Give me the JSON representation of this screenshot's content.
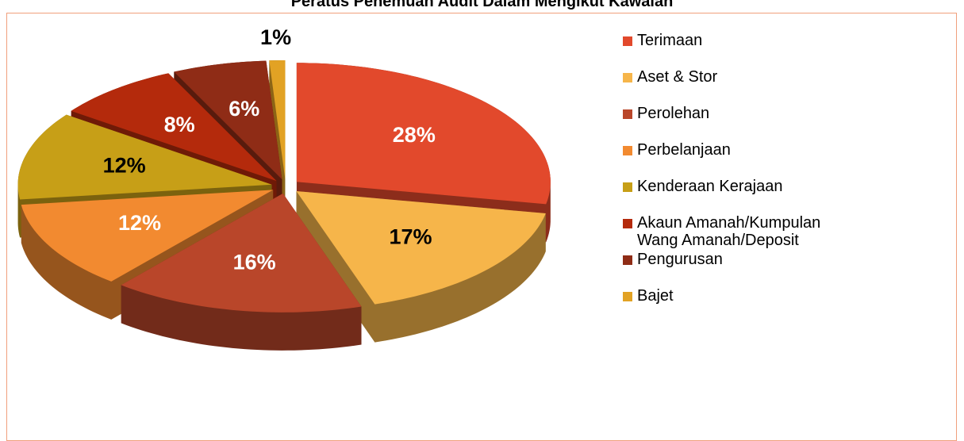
{
  "chart_data": {
    "type": "pie3d",
    "title": "Peratus Penemuan Audit Dalam Mengikut Kawalan",
    "categories": [
      "Terimaan",
      "Aset & Stor",
      "Perolehan",
      "Perbelanjaan",
      "Kenderaan Kerajaan",
      "Akaun Amanah/Kumpulan Wang Amanah/Deposit",
      "Pengurusan",
      "Bajet"
    ],
    "values": [
      28,
      17,
      16,
      12,
      12,
      8,
      6,
      1
    ],
    "value_labels": [
      "28%",
      "17%",
      "16%",
      "12%",
      "12%",
      "8%",
      "6%",
      "1%"
    ],
    "colors": [
      "#e2492c",
      "#f6b54a",
      "#b9462a",
      "#f28a30",
      "#c79f17",
      "#b42a0c",
      "#8f2c16",
      "#e2a224"
    ],
    "label_colors": [
      "#ffffff",
      "#000000",
      "#ffffff",
      "#ffffff",
      "#000000",
      "#ffffff",
      "#ffffff",
      "#000000"
    ]
  }
}
